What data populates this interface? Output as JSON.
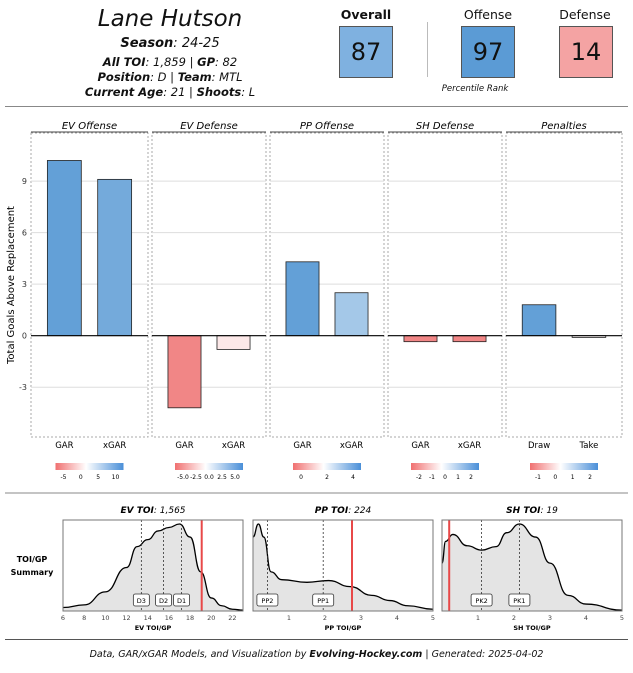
{
  "header": {
    "player": "Lane Hutson",
    "season_label": "Season",
    "season": "24-25",
    "toi_label": "All TOI",
    "toi": "1,859",
    "gp_label": "GP",
    "gp": "82",
    "position_label": "Position",
    "position": "D",
    "team_label": "Team",
    "team": "MTL",
    "age_label": "Current Age",
    "age": "21",
    "shoots_label": "Shoots",
    "shoots": "L"
  },
  "ranks": {
    "overall_label": "Overall",
    "overall": "87",
    "overall_color": "#7fb1e0",
    "offense_label": "Offense",
    "offense": "97",
    "offense_color": "#5b9bd5",
    "defense_label": "Defense",
    "defense": "14",
    "defense_color": "#f4a3a3",
    "caption": "Percentile Rank"
  },
  "chart_data": [
    {
      "type": "bar",
      "ylabel": "Total Goals Above Replacement",
      "yticks": [
        -3,
        0,
        3,
        6,
        9
      ],
      "ylim": [
        -5.9,
        11.8
      ],
      "grid": true,
      "panels": [
        {
          "title": "EV Offense",
          "categories": [
            "GAR",
            "xGAR"
          ],
          "values": [
            10.2,
            9.1
          ],
          "legend_ticks": [
            "-5",
            "0",
            "5",
            "10"
          ]
        },
        {
          "title": "EV Defense",
          "categories": [
            "GAR",
            "xGAR"
          ],
          "values": [
            -4.2,
            -0.8
          ],
          "legend_ticks": [
            "-5.0",
            "-2.5",
            "0.0",
            "2.5",
            "5.0"
          ]
        },
        {
          "title": "PP Offense",
          "categories": [
            "GAR",
            "xGAR"
          ],
          "values": [
            4.3,
            2.5
          ],
          "legend_ticks": [
            "0",
            "2",
            "4"
          ]
        },
        {
          "title": "SH Defense",
          "categories": [
            "GAR",
            "xGAR"
          ],
          "values": [
            -0.35,
            -0.35
          ],
          "legend_ticks": [
            "-2",
            "-1",
            "0",
            "1",
            "2"
          ]
        },
        {
          "title": "Penalties",
          "categories": [
            "Draw",
            "Take"
          ],
          "values": [
            1.8,
            -0.1
          ],
          "legend_ticks": [
            "-1",
            "0",
            "1",
            "2"
          ]
        }
      ]
    },
    {
      "type": "area",
      "row_label": [
        "TOI/GP",
        "Summary"
      ],
      "panels": [
        {
          "title_label": "EV TOI",
          "title_value": "1,565",
          "xlabel": "EV TOI/GP",
          "xlim": [
            6,
            23
          ],
          "xticks": [
            6,
            8,
            10,
            12,
            14,
            16,
            18,
            20,
            22
          ],
          "player_value": 19.1,
          "markers": [
            {
              "label": "D3",
              "x": 13.4
            },
            {
              "label": "D2",
              "x": 15.5
            },
            {
              "label": "D1",
              "x": 17.2
            }
          ],
          "density": [
            [
              6,
              0.04
            ],
            [
              8,
              0.07
            ],
            [
              10,
              0.22
            ],
            [
              12,
              0.5
            ],
            [
              13,
              0.74
            ],
            [
              14,
              0.82
            ],
            [
              15,
              0.92
            ],
            [
              16,
              0.96
            ],
            [
              17,
              1.0
            ],
            [
              18,
              0.85
            ],
            [
              19,
              0.45
            ],
            [
              20,
              0.15
            ],
            [
              21,
              0.06
            ],
            [
              22,
              0.02
            ],
            [
              23,
              0.01
            ]
          ]
        },
        {
          "title_label": "PP TOI",
          "title_value": "224",
          "xlabel": "PP TOI/GP",
          "xlim": [
            0,
            5
          ],
          "xticks": [
            1,
            2,
            3,
            4,
            5
          ],
          "player_value": 2.75,
          "markers": [
            {
              "label": "PP2",
              "x": 0.4
            },
            {
              "label": "PP1",
              "x": 1.95
            }
          ],
          "density": [
            [
              0,
              0.85
            ],
            [
              0.15,
              1.0
            ],
            [
              0.3,
              0.85
            ],
            [
              0.5,
              0.45
            ],
            [
              0.8,
              0.36
            ],
            [
              1.5,
              0.33
            ],
            [
              2.1,
              0.35
            ],
            [
              2.7,
              0.28
            ],
            [
              3.3,
              0.18
            ],
            [
              3.8,
              0.12
            ],
            [
              4.3,
              0.06
            ],
            [
              5,
              0.02
            ]
          ]
        },
        {
          "title_label": "SH TOI",
          "title_value": "19",
          "xlabel": "SH TOI/GP",
          "xlim": [
            0,
            5
          ],
          "xticks": [
            1,
            2,
            3,
            4,
            5
          ],
          "player_value": 0.2,
          "markers": [
            {
              "label": "PK2",
              "x": 1.1
            },
            {
              "label": "PK1",
              "x": 2.15
            }
          ],
          "density": [
            [
              0,
              0.55
            ],
            [
              0.1,
              0.8
            ],
            [
              0.3,
              0.88
            ],
            [
              0.7,
              0.75
            ],
            [
              1.1,
              0.7
            ],
            [
              1.5,
              0.74
            ],
            [
              1.8,
              0.9
            ],
            [
              2.15,
              1.0
            ],
            [
              2.6,
              0.85
            ],
            [
              3.0,
              0.55
            ],
            [
              3.5,
              0.18
            ],
            [
              4,
              0.08
            ],
            [
              5,
              0.01
            ]
          ]
        }
      ]
    }
  ],
  "footer": {
    "prefix": "Data, GAR/xGAR Models, and Visualization by ",
    "site": "Evolving-Hockey.com",
    "generated": " | Generated: 2025-04-02"
  }
}
